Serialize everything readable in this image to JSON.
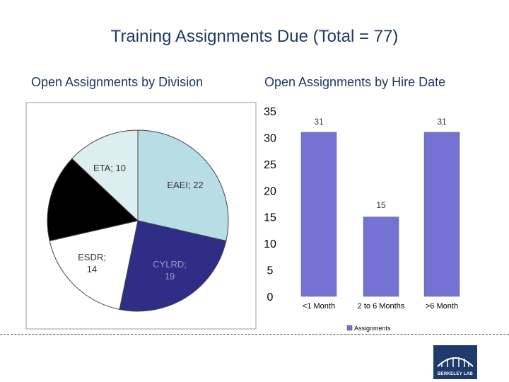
{
  "header": {
    "title": "Training Assignments Due (Total = 77)"
  },
  "chart_data": [
    {
      "type": "pie",
      "title": "Open Assignments by Division",
      "slices": [
        {
          "label": "EAEI; 22",
          "value": 22,
          "color": "#b7dee4"
        },
        {
          "label": "CYLRD; 19",
          "value": 19,
          "color": "#2e2e86"
        },
        {
          "label": "ESDR; 14",
          "value": 14,
          "color": "#ffffff"
        },
        {
          "label": "",
          "value": 12,
          "color": "#000000"
        },
        {
          "label": "ETA; 10",
          "value": 10,
          "color": "#ddeef1"
        }
      ]
    },
    {
      "type": "bar",
      "title": "Open Assignments by Hire Date",
      "categories": [
        "<1 Month",
        "2 to 6 Months",
        ">6 Month"
      ],
      "series": [
        {
          "name": "Assignments",
          "values": [
            31,
            15,
            31
          ],
          "color": "#7472d2"
        }
      ],
      "ylim": [
        0,
        35
      ],
      "yticks": [
        "0",
        "5",
        "10",
        "15",
        "20",
        "25",
        "30",
        "35"
      ],
      "legend": "bottom"
    }
  ],
  "branding": {
    "logo_name": "berkeley-lab-logo",
    "logo_text": "BERKELEY LAB"
  }
}
